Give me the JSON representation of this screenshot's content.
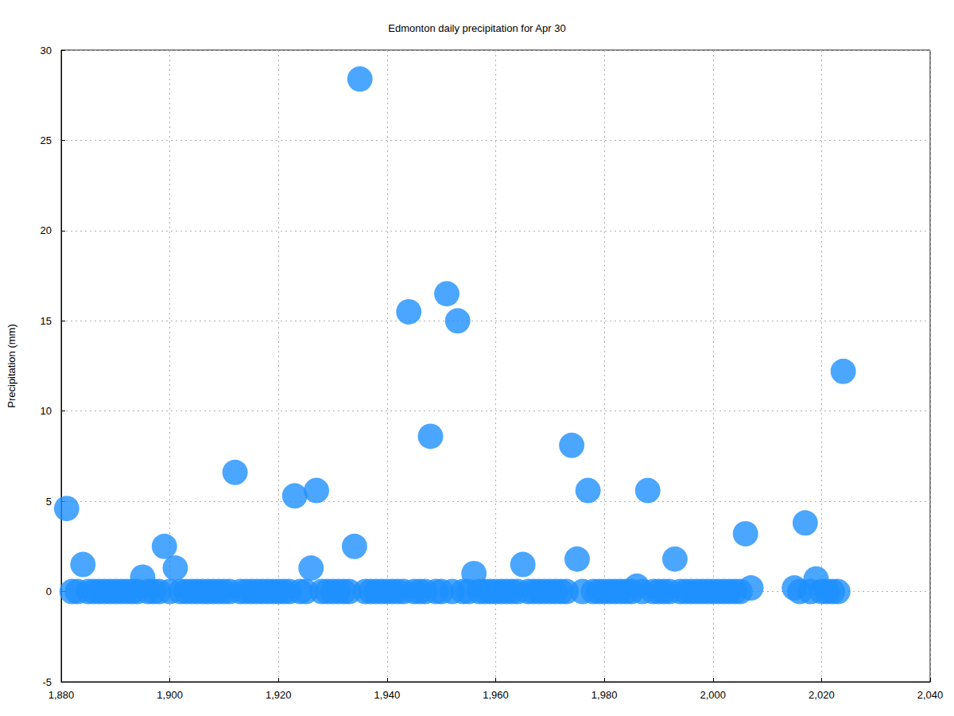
{
  "chart_data": {
    "type": "scatter",
    "title": "Edmonton daily precipitation for Apr 30",
    "y_label": "Precipitation (mm)",
    "x": [
      1881,
      1882,
      1883,
      1884,
      1885,
      1886,
      1887,
      1888,
      1889,
      1890,
      1891,
      1892,
      1893,
      1894,
      1895,
      1896,
      1897,
      1898,
      1899,
      1900,
      1901,
      1902,
      1903,
      1904,
      1905,
      1906,
      1907,
      1908,
      1909,
      1910,
      1911,
      1912,
      1913,
      1914,
      1915,
      1916,
      1917,
      1918,
      1919,
      1920,
      1921,
      1922,
      1923,
      1924,
      1925,
      1926,
      1927,
      1928,
      1929,
      1930,
      1931,
      1932,
      1933,
      1934,
      1935,
      1936,
      1937,
      1938,
      1939,
      1940,
      1941,
      1942,
      1943,
      1944,
      1945,
      1946,
      1947,
      1948,
      1949,
      1950,
      1951,
      1952,
      1953,
      1954,
      1955,
      1956,
      1957,
      1958,
      1959,
      1960,
      1961,
      1962,
      1963,
      1964,
      1965,
      1966,
      1967,
      1968,
      1969,
      1970,
      1971,
      1972,
      1973,
      1974,
      1975,
      1976,
      1977,
      1978,
      1979,
      1980,
      1981,
      1982,
      1983,
      1984,
      1985,
      1986,
      1987,
      1988,
      1989,
      1990,
      1991,
      1992,
      1993,
      1994,
      1995,
      1996,
      1997,
      1998,
      1999,
      2000,
      2001,
      2002,
      2003,
      2004,
      2005,
      2006,
      2007,
      2015,
      2016,
      2017,
      2018,
      2019,
      2020,
      2021,
      2022,
      2023,
      2024
    ],
    "values": [
      4.6,
      0,
      0,
      1.5,
      0,
      0,
      0,
      0,
      0,
      0,
      0,
      0,
      0,
      0,
      0.8,
      0,
      0,
      0,
      2.5,
      0,
      1.3,
      0,
      0,
      0,
      0,
      0,
      0,
      0,
      0,
      0,
      0,
      6.6,
      0,
      0,
      0,
      0,
      0,
      0,
      0,
      0,
      0,
      0,
      5.3,
      0,
      0,
      1.3,
      5.6,
      0,
      0,
      0,
      0,
      0,
      0,
      2.5,
      28.4,
      0,
      0,
      0,
      0,
      0,
      0,
      0,
      0,
      15.5,
      0,
      0,
      0,
      8.6,
      0,
      0,
      16.5,
      0,
      15.0,
      0,
      0,
      1.0,
      0,
      0,
      0,
      0,
      0,
      0,
      0,
      0,
      1.5,
      0,
      0,
      0,
      0,
      0,
      0,
      0,
      0,
      8.1,
      1.8,
      0,
      5.6,
      0,
      0,
      0,
      0,
      0,
      0,
      0,
      0,
      0.3,
      0,
      5.6,
      0,
      0,
      0,
      0,
      1.8,
      0,
      0,
      0,
      0,
      0,
      0,
      0,
      0,
      0,
      0,
      0,
      0,
      3.2,
      0.2,
      0.2,
      0,
      3.8,
      0,
      0.7,
      0,
      0,
      0,
      0,
      12.2
    ],
    "color": "#1e90ff",
    "marker": "circle",
    "xlim": [
      1880,
      2040
    ],
    "xticks": [
      1880,
      1900,
      1920,
      1940,
      1960,
      1980,
      2000,
      2020,
      2040
    ],
    "ylim": [
      -5,
      30
    ],
    "yticks": [
      -5,
      0,
      5,
      10,
      15,
      20,
      25,
      30
    ],
    "grid": true
  }
}
